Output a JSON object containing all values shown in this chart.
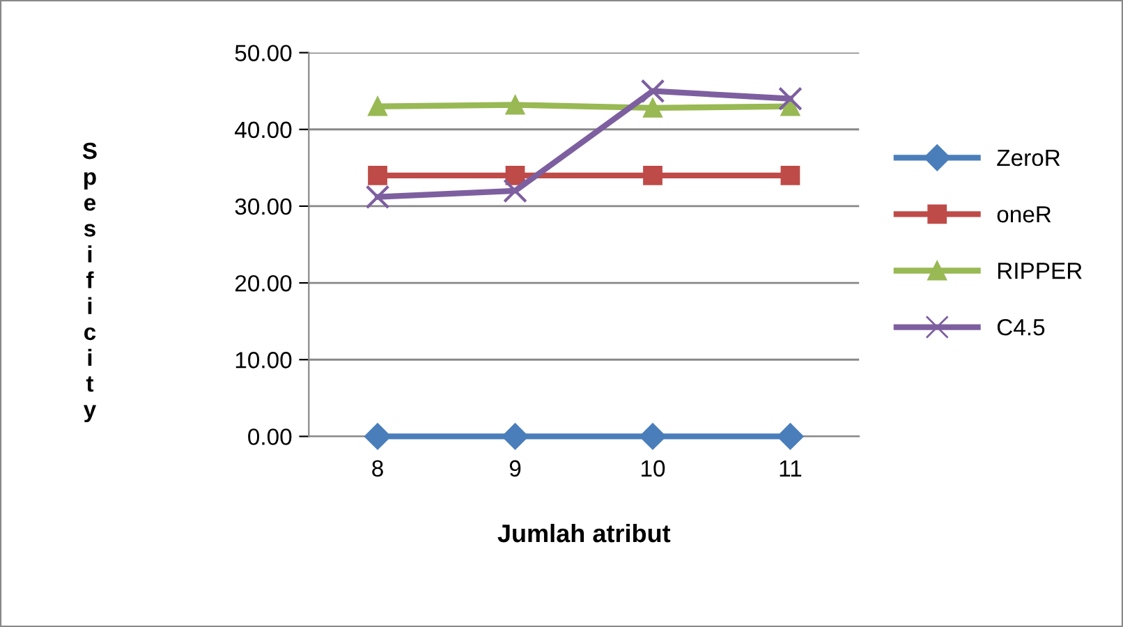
{
  "chart_data": {
    "type": "line",
    "xlabel": "Jumlah atribut",
    "ylabel": "Spesificity",
    "categories": [
      "8",
      "9",
      "10",
      "11"
    ],
    "series": [
      {
        "name": "ZeroR",
        "color": "#4a7ebb",
        "marker": "diamond",
        "values": [
          0,
          0,
          0,
          0
        ]
      },
      {
        "name": "oneR",
        "color": "#be4b48",
        "marker": "square",
        "values": [
          34,
          34,
          34,
          34
        ]
      },
      {
        "name": "RIPPER",
        "color": "#98b954",
        "marker": "triangle",
        "values": [
          43,
          43.2,
          42.8,
          43
        ]
      },
      {
        "name": "C4.5",
        "color": "#7d5fa0",
        "marker": "cross",
        "values": [
          31.2,
          32,
          45,
          44
        ]
      }
    ],
    "ylim": [
      0,
      50
    ],
    "yticks": [
      {
        "value": 0,
        "label": "0.00"
      },
      {
        "value": 10,
        "label": "10.00"
      },
      {
        "value": 20,
        "label": "20.00"
      },
      {
        "value": 30,
        "label": "30.00"
      },
      {
        "value": 40,
        "label": "40.00"
      },
      {
        "value": 50,
        "label": "50.00"
      }
    ],
    "grid": "y",
    "legend": "right",
    "line_style": "solid"
  }
}
